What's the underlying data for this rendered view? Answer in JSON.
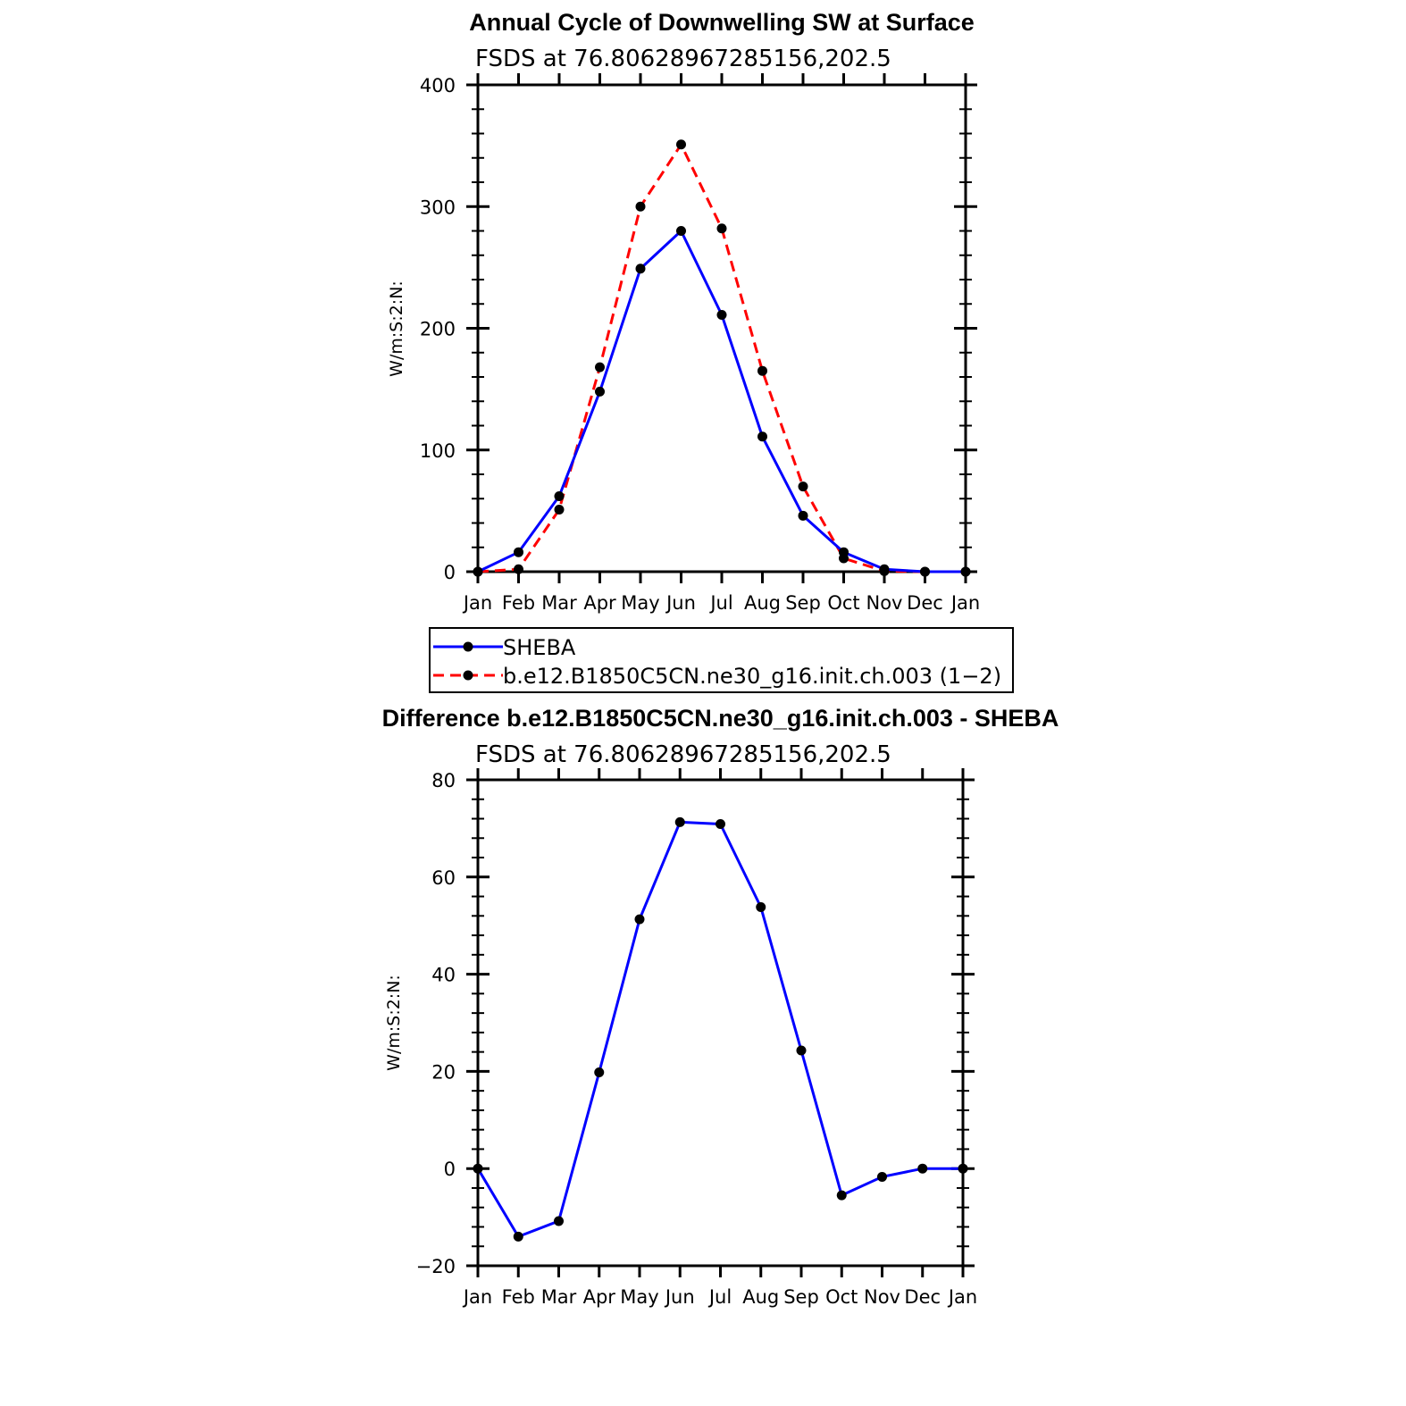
{
  "chart_data": [
    {
      "type": "line",
      "title": "Annual Cycle of Downwelling SW at Surface",
      "subtitle": "FSDS at 76.80628967285156,202.5",
      "xlabel": "",
      "ylabel": "W/m:S:2:N:",
      "x_tick_labels": [
        "Jan",
        "Feb",
        "Mar",
        "Apr",
        "May",
        "Jun",
        "Jul",
        "Aug",
        "Sep",
        "Oct",
        "Nov",
        "Dec",
        "Jan"
      ],
      "ylim": [
        0,
        400
      ],
      "y_ticks": [
        0,
        100,
        200,
        300,
        400
      ],
      "grid": false,
      "series": [
        {
          "name": "SHEBA",
          "color": "#0000ff",
          "dash": "solid",
          "values": [
            0,
            16,
            62,
            148,
            249,
            280,
            211,
            111,
            46,
            16,
            2,
            0,
            0
          ]
        },
        {
          "name": "b.e12.B1850C5CN.ne30_g16.init.ch.003 (1−2)",
          "color": "#ff0000",
          "dash": "dashed",
          "values": [
            0,
            2,
            51,
            168,
            300,
            351,
            282,
            165,
            70,
            11,
            0.5,
            0,
            0
          ]
        }
      ],
      "legend": {
        "placement": "below",
        "entries": [
          "SHEBA",
          "b.e12.B1850C5CN.ne30_g16.init.ch.003 (1−2)"
        ]
      }
    },
    {
      "type": "line",
      "title": "Difference b.e12.B1850C5CN.ne30_g16.init.ch.003 - SHEBA",
      "subtitle": "FSDS at 76.80628967285156,202.5",
      "xlabel": "",
      "ylabel": "W/m:S:2:N:",
      "x_tick_labels": [
        "Jan",
        "Feb",
        "Mar",
        "Apr",
        "May",
        "Jun",
        "Jul",
        "Aug",
        "Sep",
        "Oct",
        "Nov",
        "Dec",
        "Jan"
      ],
      "ylim": [
        -20,
        80
      ],
      "y_ticks": [
        -20,
        0,
        20,
        40,
        60,
        80
      ],
      "y_tick_labels": [
        "−20",
        "0",
        "20",
        "40",
        "60",
        "80"
      ],
      "grid": false,
      "series": [
        {
          "color": "#0000ff",
          "dash": "solid",
          "values": [
            0,
            -14,
            -10.8,
            19.8,
            51.3,
            71.3,
            70.9,
            53.8,
            24.3,
            -5.5,
            -1.7,
            0,
            0
          ]
        }
      ]
    }
  ]
}
